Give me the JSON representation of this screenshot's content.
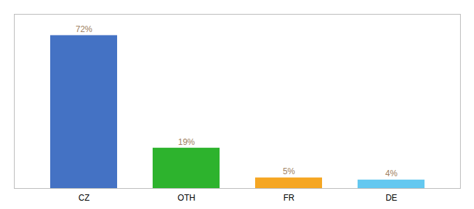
{
  "chart_data": {
    "type": "bar",
    "categories": [
      "CZ",
      "OTH",
      "FR",
      "DE"
    ],
    "values": [
      72,
      19,
      5,
      4
    ],
    "colors": [
      "#4472c4",
      "#2db32d",
      "#f5a623",
      "#64c8f0"
    ],
    "ylim": [
      0,
      82
    ],
    "data_labels": true,
    "value_labels": [
      "72%",
      "19%",
      "5%",
      "4%"
    ],
    "tick_labels": "x",
    "grid": false
  }
}
